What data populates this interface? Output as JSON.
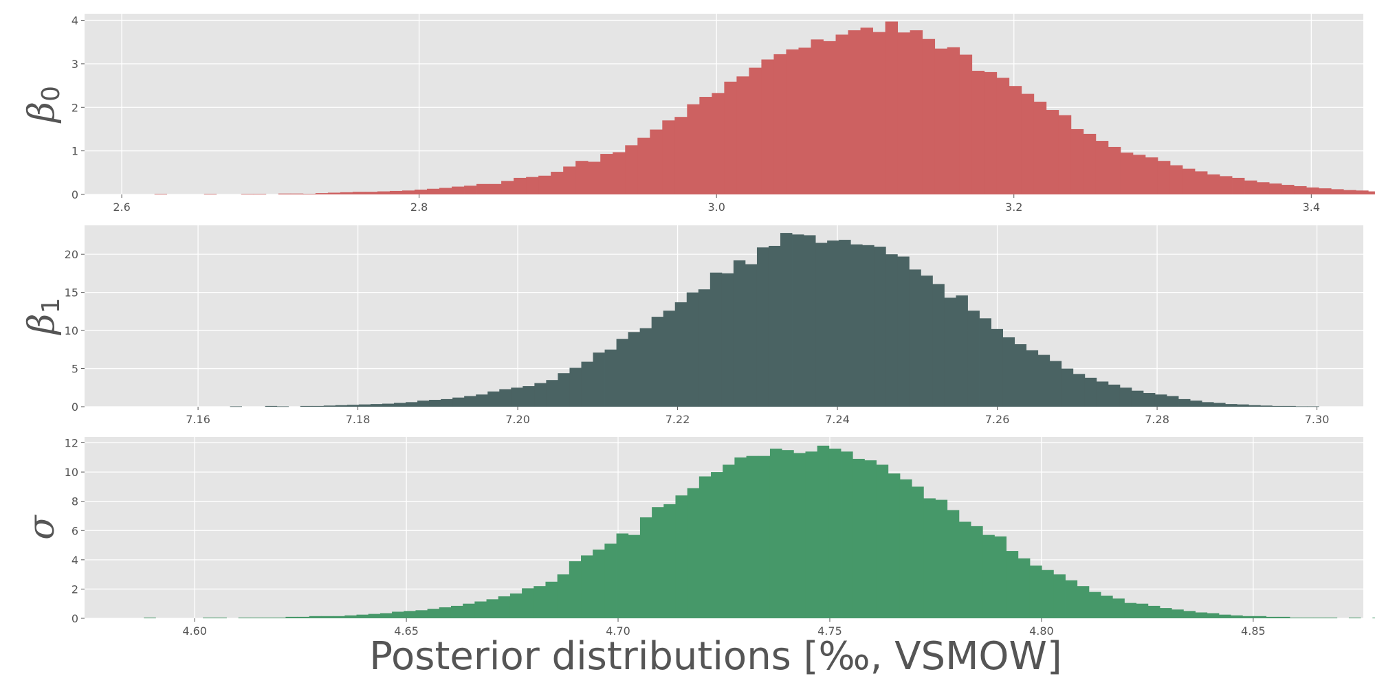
{
  "figure": {
    "xlabel": "Posterior distributions [‰, VSMOW]",
    "panel_background": "#e5e5e5",
    "grid_color": "#ffffff",
    "text_color": "#555555"
  },
  "chart_data": [
    {
      "type": "histogram",
      "ylabel": {
        "symbol": "β",
        "subscript": "0"
      },
      "color": "#cd6161",
      "xlim": [
        2.575,
        3.435
      ],
      "ylim": [
        0,
        4.15
      ],
      "xticks": [
        2.6,
        2.8,
        3.0,
        3.2,
        3.4
      ],
      "xtick_labels": [
        "2.6",
        "2.8",
        "3.0",
        "3.2",
        "3.4"
      ],
      "yticks": [
        0,
        1,
        2,
        3,
        4
      ],
      "ytick_labels": [
        "0",
        "1",
        "2",
        "3",
        "4"
      ],
      "bins": {
        "start": 2.622,
        "width": 0.00833,
        "heights": [
          0.01,
          0.0,
          0.0,
          0.0,
          0.01,
          0.0,
          0.0,
          0.01,
          0.01,
          0.0,
          0.02,
          0.02,
          0.01,
          0.03,
          0.04,
          0.05,
          0.06,
          0.06,
          0.07,
          0.08,
          0.09,
          0.11,
          0.13,
          0.15,
          0.18,
          0.2,
          0.24,
          0.24,
          0.31,
          0.38,
          0.4,
          0.43,
          0.52,
          0.64,
          0.77,
          0.75,
          0.93,
          0.97,
          1.13,
          1.3,
          1.49,
          1.7,
          1.78,
          2.07,
          2.24,
          2.33,
          2.59,
          2.71,
          2.91,
          3.1,
          3.22,
          3.33,
          3.37,
          3.56,
          3.52,
          3.67,
          3.77,
          3.83,
          3.73,
          3.97,
          3.72,
          3.77,
          3.57,
          3.35,
          3.38,
          3.21,
          2.84,
          2.81,
          2.68,
          2.49,
          2.31,
          2.13,
          1.94,
          1.82,
          1.5,
          1.39,
          1.23,
          1.09,
          0.96,
          0.91,
          0.85,
          0.77,
          0.67,
          0.59,
          0.53,
          0.46,
          0.42,
          0.38,
          0.32,
          0.28,
          0.25,
          0.22,
          0.19,
          0.16,
          0.14,
          0.12,
          0.1,
          0.09,
          0.07,
          0.06,
          0.05,
          0.04,
          0.04,
          0.03,
          0.02,
          0.02,
          0.01,
          0.01,
          0.01,
          0.0,
          0.01,
          0.0,
          0.0,
          0.01,
          0.0
        ]
      }
    },
    {
      "type": "histogram",
      "ylabel": {
        "symbol": "β",
        "subscript": "1"
      },
      "color": "#4a6363",
      "xlim": [
        7.1458,
        7.3058
      ],
      "ylim": [
        0,
        23.8
      ],
      "xticks": [
        7.16,
        7.18,
        7.2,
        7.22,
        7.24,
        7.26,
        7.28,
        7.3
      ],
      "xtick_labels": [
        "7.16",
        "7.18",
        "7.20",
        "7.22",
        "7.24",
        "7.26",
        "7.28",
        "7.30"
      ],
      "yticks": [
        0,
        5,
        10,
        15,
        20
      ],
      "ytick_labels": [
        "0",
        "5",
        "10",
        "15",
        "20"
      ],
      "bins": {
        "start": 7.164,
        "width": 0.001465,
        "heights": [
          0.05,
          0.0,
          0.0,
          0.1,
          0.05,
          0.0,
          0.1,
          0.1,
          0.15,
          0.2,
          0.25,
          0.3,
          0.35,
          0.4,
          0.5,
          0.6,
          0.8,
          0.9,
          1.0,
          1.2,
          1.4,
          1.6,
          2.0,
          2.3,
          2.5,
          2.7,
          3.1,
          3.5,
          4.4,
          5.1,
          5.9,
          7.1,
          7.5,
          8.9,
          9.8,
          10.3,
          11.8,
          12.6,
          13.7,
          15.0,
          15.4,
          17.6,
          17.5,
          19.2,
          18.7,
          20.9,
          21.1,
          22.8,
          22.6,
          22.5,
          21.5,
          21.8,
          21.9,
          21.3,
          21.2,
          21.0,
          20.0,
          19.7,
          18.0,
          17.2,
          16.1,
          14.3,
          14.6,
          12.6,
          11.6,
          10.2,
          9.1,
          8.2,
          7.4,
          6.8,
          6.0,
          5.0,
          4.3,
          3.8,
          3.3,
          2.9,
          2.5,
          2.1,
          1.8,
          1.6,
          1.4,
          1.0,
          0.8,
          0.6,
          0.5,
          0.35,
          0.3,
          0.2,
          0.15,
          0.1,
          0.1,
          0.05,
          0.05,
          0.0
        ]
      }
    },
    {
      "type": "histogram",
      "ylabel": {
        "symbol": "σ",
        "subscript": ""
      },
      "color": "#469869",
      "xlim": [
        4.574,
        4.876
      ],
      "ylim": [
        0,
        12.4
      ],
      "xticks": [
        4.6,
        4.65,
        4.7,
        4.75,
        4.8,
        4.85
      ],
      "xtick_labels": [
        "4.60",
        "4.65",
        "4.70",
        "4.75",
        "4.80",
        "4.85"
      ],
      "yticks": [
        0,
        2,
        4,
        6,
        8,
        10,
        12
      ],
      "ytick_labels": [
        "0",
        "2",
        "4",
        "6",
        "8",
        "10",
        "12"
      ],
      "bins": {
        "start": 4.588,
        "width": 0.00279,
        "heights": [
          0.05,
          0.0,
          0.0,
          0.0,
          0.0,
          0.05,
          0.05,
          0.0,
          0.05,
          0.05,
          0.05,
          0.05,
          0.1,
          0.1,
          0.15,
          0.15,
          0.15,
          0.2,
          0.25,
          0.3,
          0.35,
          0.45,
          0.5,
          0.55,
          0.65,
          0.75,
          0.85,
          1.0,
          1.15,
          1.3,
          1.5,
          1.7,
          2.05,
          2.2,
          2.5,
          3.0,
          3.9,
          4.3,
          4.7,
          5.1,
          5.8,
          5.7,
          6.9,
          7.6,
          7.8,
          8.4,
          8.9,
          9.7,
          10.0,
          10.5,
          11.0,
          11.1,
          11.1,
          11.6,
          11.5,
          11.3,
          11.4,
          11.8,
          11.6,
          11.4,
          10.9,
          10.8,
          10.5,
          9.9,
          9.5,
          9.0,
          8.2,
          8.1,
          7.4,
          6.6,
          6.3,
          5.7,
          5.6,
          4.6,
          4.1,
          3.6,
          3.3,
          3.0,
          2.6,
          2.2,
          1.8,
          1.55,
          1.35,
          1.05,
          1.0,
          0.85,
          0.7,
          0.6,
          0.5,
          0.4,
          0.35,
          0.25,
          0.2,
          0.15,
          0.15,
          0.1,
          0.1,
          0.05,
          0.05,
          0.05,
          0.05,
          0.0,
          0.05,
          0.0,
          0.05,
          0.0,
          0.0,
          0.05,
          0.0,
          0.05
        ]
      }
    }
  ]
}
